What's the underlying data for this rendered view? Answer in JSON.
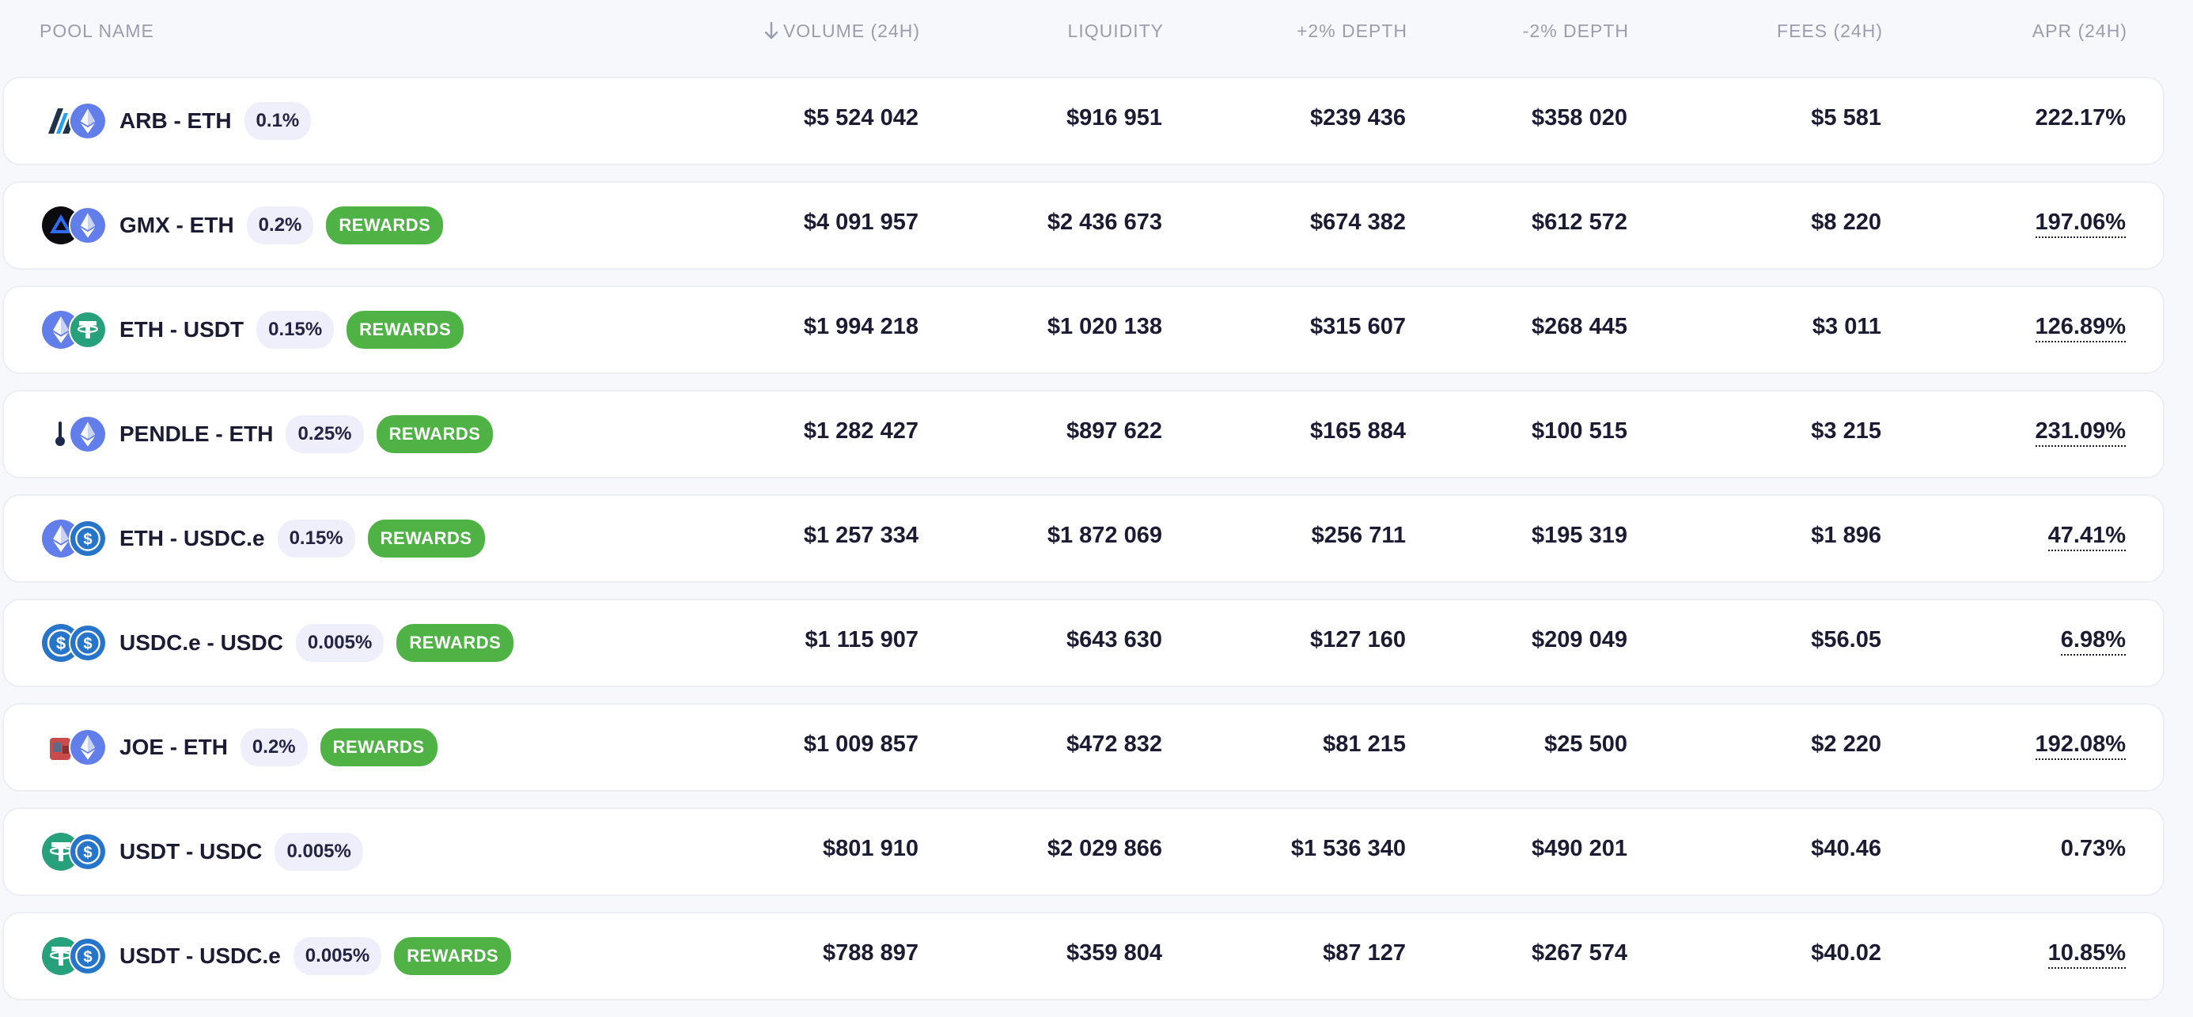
{
  "header": {
    "pool_name": "POOL NAME",
    "volume": "VOLUME (24H)",
    "liquidity": "LIQUIDITY",
    "plus_depth": "+2% DEPTH",
    "minus_depth": "-2% DEPTH",
    "fees": "FEES (24H)",
    "apr": "APR (24H)"
  },
  "colors": {
    "rewards_green": "#4fb244",
    "fee_badge_bg": "#efeefb",
    "row_bg": "#ffffff",
    "page_bg": "#f7f8fc",
    "header_text": "#9a9db0"
  },
  "rows": [
    {
      "pair": "ARB - ETH",
      "fee": "0.1%",
      "rewards": "",
      "token_a_icon": "arbitrum-icon",
      "token_b_icon": "ethereum-icon",
      "volume": "$5 524 042",
      "liquidity": "$916 951",
      "plus_depth": "$239 436",
      "minus_depth": "$358 020",
      "fees": "$5 581",
      "apr": "222.17%",
      "apr_dotted": false
    },
    {
      "pair": "GMX - ETH",
      "fee": "0.2%",
      "rewards": "REWARDS",
      "token_a_icon": "gmx-icon",
      "token_b_icon": "ethereum-icon",
      "volume": "$4 091 957",
      "liquidity": "$2 436 673",
      "plus_depth": "$674 382",
      "minus_depth": "$612 572",
      "fees": "$8 220",
      "apr": "197.06%",
      "apr_dotted": true
    },
    {
      "pair": "ETH - USDT",
      "fee": "0.15%",
      "rewards": "REWARDS",
      "token_a_icon": "ethereum-icon",
      "token_b_icon": "tether-icon",
      "volume": "$1 994 218",
      "liquidity": "$1 020 138",
      "plus_depth": "$315 607",
      "minus_depth": "$268 445",
      "fees": "$3 011",
      "apr": "126.89%",
      "apr_dotted": true
    },
    {
      "pair": "PENDLE - ETH",
      "fee": "0.25%",
      "rewards": "REWARDS",
      "token_a_icon": "pendle-icon",
      "token_b_icon": "ethereum-icon",
      "volume": "$1 282 427",
      "liquidity": "$897 622",
      "plus_depth": "$165 884",
      "minus_depth": "$100 515",
      "fees": "$3 215",
      "apr": "231.09%",
      "apr_dotted": true
    },
    {
      "pair": "ETH - USDC.e",
      "fee": "0.15%",
      "rewards": "REWARDS",
      "token_a_icon": "ethereum-icon",
      "token_b_icon": "usdc-icon",
      "volume": "$1 257 334",
      "liquidity": "$1 872 069",
      "plus_depth": "$256 711",
      "minus_depth": "$195 319",
      "fees": "$1 896",
      "apr": "47.41%",
      "apr_dotted": true
    },
    {
      "pair": "USDC.e - USDC",
      "fee": "0.005%",
      "rewards": "REWARDS",
      "token_a_icon": "usdc-icon",
      "token_b_icon": "usdc-icon",
      "volume": "$1 115 907",
      "liquidity": "$643 630",
      "plus_depth": "$127 160",
      "minus_depth": "$209 049",
      "fees": "$56.05",
      "apr": "6.98%",
      "apr_dotted": true
    },
    {
      "pair": "JOE - ETH",
      "fee": "0.2%",
      "rewards": "REWARDS",
      "token_a_icon": "joe-icon",
      "token_b_icon": "ethereum-icon",
      "volume": "$1 009 857",
      "liquidity": "$472 832",
      "plus_depth": "$81 215",
      "minus_depth": "$25 500",
      "fees": "$2 220",
      "apr": "192.08%",
      "apr_dotted": true
    },
    {
      "pair": "USDT - USDC",
      "fee": "0.005%",
      "rewards": "",
      "token_a_icon": "tether-icon",
      "token_b_icon": "usdc-icon",
      "volume": "$801 910",
      "liquidity": "$2 029 866",
      "plus_depth": "$1 536 340",
      "minus_depth": "$490 201",
      "fees": "$40.46",
      "apr": "0.73%",
      "apr_dotted": false
    },
    {
      "pair": "USDT - USDC.e",
      "fee": "0.005%",
      "rewards": "REWARDS",
      "token_a_icon": "tether-icon",
      "token_b_icon": "usdc-icon",
      "volume": "$788 897",
      "liquidity": "$359 804",
      "plus_depth": "$87 127",
      "minus_depth": "$267 574",
      "fees": "$40.02",
      "apr": "10.85%",
      "apr_dotted": true
    }
  ]
}
